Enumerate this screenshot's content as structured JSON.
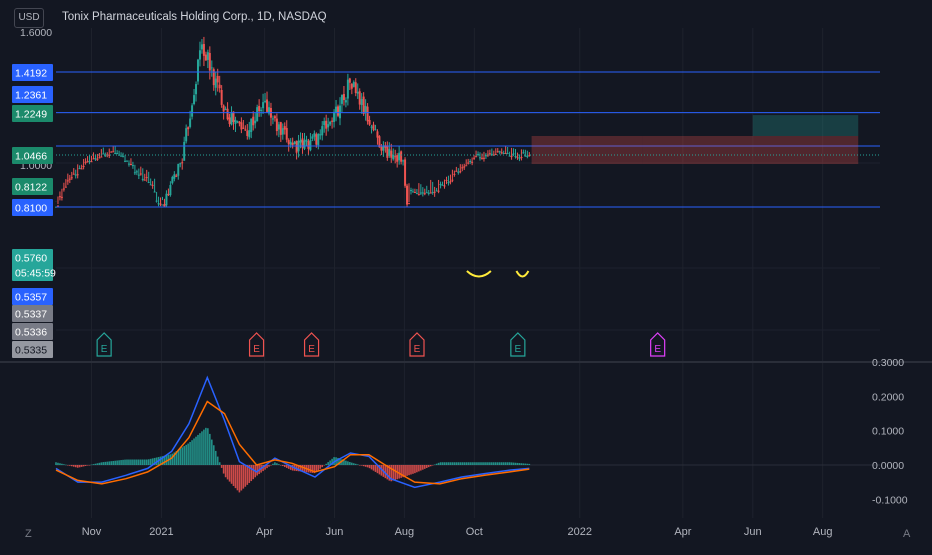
{
  "header": {
    "currency": "USD",
    "title": "Tonix Pharmaceuticals Holding Corp., 1D, NASDAQ"
  },
  "left_labels": [
    {
      "text": "1.4192",
      "bg": "#2962ff",
      "fg": "#ffffff"
    },
    {
      "text": "1.2361",
      "bg": "#2962ff",
      "fg": "#ffffff"
    },
    {
      "text": "1.2249",
      "bg": "#1b8a6b",
      "fg": "#ffffff"
    },
    {
      "text": "1.0466",
      "bg": "#1b8a6b",
      "fg": "#ffffff"
    },
    {
      "text": "0.8122",
      "bg": "#1b8a6b",
      "fg": "#ffffff"
    },
    {
      "text": "0.8100",
      "bg": "#2962ff",
      "fg": "#ffffff"
    },
    {
      "text": "0.5760",
      "bg": "#26a69a",
      "fg": "#ffffff"
    },
    {
      "text": "05:45:59",
      "bg": "#26a69a",
      "fg": "#ffffff"
    },
    {
      "text": "0.5357",
      "bg": "#2962ff",
      "fg": "#ffffff"
    },
    {
      "text": "0.5337",
      "bg": "#787b86",
      "fg": "#ffffff"
    },
    {
      "text": "0.5336",
      "bg": "#787b86",
      "fg": "#ffffff"
    },
    {
      "text": "0.5335",
      "bg": "#9598a1",
      "fg": "#131722"
    }
  ],
  "price_axis_ticks": [
    "1.6000",
    "1.0000"
  ],
  "macd_axis_ticks": [
    "0.3000",
    "0.2000",
    "0.1000",
    "0.0000",
    "-0.1000"
  ],
  "x_axis_labels": [
    "Nov",
    "2021",
    "Apr",
    "Jun",
    "Aug",
    "Oct",
    "2022",
    "Apr",
    "Jun",
    "Aug"
  ],
  "corner_left": "Z",
  "corner_right": "A",
  "earnings_markers": [
    {
      "label": "E",
      "color": "#26a69a"
    },
    {
      "label": "E",
      "color": "#ef5350"
    },
    {
      "label": "E",
      "color": "#ef5350"
    },
    {
      "label": "E",
      "color": "#ef5350"
    },
    {
      "label": "E",
      "color": "#26a69a"
    },
    {
      "label": "E",
      "color": "#e040fb"
    }
  ],
  "horizontal_levels": [
    1.4192,
    1.2361,
    0.81,
    0.5357
  ],
  "position_targets": [
    0.81,
    1.0466,
    1.2249
  ],
  "position_entry": 0.5357,
  "position_stop": 0.5335,
  "last_price": 0.576,
  "colors": {
    "background": "#131722",
    "up": "#26a69a",
    "down": "#ef5350",
    "level_line": "#2962ff",
    "macd_line": "#2962ff",
    "signal_line": "#ff6d00",
    "highlight": "#ffeb3b"
  },
  "chart_data": [
    {
      "type": "candlestick",
      "title": "Tonix Pharmaceuticals Holding Corp., 1D, NASDAQ",
      "ylim": [
        0.45,
        1.65
      ],
      "x_tick_labels": [
        "Nov",
        "2021",
        "Apr",
        "Jun",
        "Aug",
        "Oct",
        "2022",
        "Apr",
        "Jun",
        "Aug"
      ],
      "close_series": [
        {
          "date": "2020-10-01",
          "value": 0.8
        },
        {
          "date": "2020-10-15",
          "value": 0.66
        },
        {
          "date": "2020-11-01",
          "value": 0.58
        },
        {
          "date": "2020-11-20",
          "value": 0.55
        },
        {
          "date": "2020-12-05",
          "value": 0.62
        },
        {
          "date": "2020-12-20",
          "value": 0.68
        },
        {
          "date": "2021-01-05",
          "value": 0.84
        },
        {
          "date": "2021-01-20",
          "value": 1.05
        },
        {
          "date": "2021-02-05",
          "value": 1.55
        },
        {
          "date": "2021-02-15",
          "value": 1.4
        },
        {
          "date": "2021-03-01",
          "value": 1.22
        },
        {
          "date": "2021-03-15",
          "value": 1.15
        },
        {
          "date": "2021-04-01",
          "value": 1.28
        },
        {
          "date": "2021-04-15",
          "value": 1.14
        },
        {
          "date": "2021-05-01",
          "value": 1.08
        },
        {
          "date": "2021-05-15",
          "value": 1.12
        },
        {
          "date": "2021-06-01",
          "value": 1.22
        },
        {
          "date": "2021-06-15",
          "value": 1.38
        },
        {
          "date": "2021-07-01",
          "value": 1.2
        },
        {
          "date": "2021-07-15",
          "value": 1.06
        },
        {
          "date": "2021-07-30",
          "value": 1.04
        },
        {
          "date": "2021-08-05",
          "value": 0.72
        },
        {
          "date": "2021-08-20",
          "value": 0.74
        },
        {
          "date": "2021-09-05",
          "value": 0.7
        },
        {
          "date": "2021-09-20",
          "value": 0.62
        },
        {
          "date": "2021-10-05",
          "value": 0.58
        },
        {
          "date": "2021-10-20",
          "value": 0.56
        },
        {
          "date": "2021-11-05",
          "value": 0.57
        },
        {
          "date": "2021-11-18",
          "value": 0.576
        }
      ]
    },
    {
      "type": "line",
      "title": "",
      "ylim": [
        -0.12,
        0.31
      ],
      "series": [
        {
          "values": [
            {
              "date": "2020-10-01",
              "value": -0.01
            },
            {
              "date": "2020-10-20",
              "value": -0.05
            },
            {
              "date": "2020-11-10",
              "value": -0.05
            },
            {
              "date": "2020-12-01",
              "value": -0.03
            },
            {
              "date": "2020-12-20",
              "value": -0.01
            },
            {
              "date": "2021-01-10",
              "value": 0.04
            },
            {
              "date": "2021-01-25",
              "value": 0.12
            },
            {
              "date": "2021-02-10",
              "value": 0.255
            },
            {
              "date": "2021-02-25",
              "value": 0.13
            },
            {
              "date": "2021-03-10",
              "value": 0.01
            },
            {
              "date": "2021-03-25",
              "value": -0.02
            },
            {
              "date": "2021-04-10",
              "value": 0.02
            },
            {
              "date": "2021-04-25",
              "value": -0.005
            },
            {
              "date": "2021-05-15",
              "value": -0.035
            },
            {
              "date": "2021-06-01",
              "value": 0.01
            },
            {
              "date": "2021-06-15",
              "value": 0.035
            },
            {
              "date": "2021-07-01",
              "value": 0.025
            },
            {
              "date": "2021-07-20",
              "value": -0.04
            },
            {
              "date": "2021-08-10",
              "value": -0.065
            },
            {
              "date": "2021-09-01",
              "value": -0.05
            },
            {
              "date": "2021-09-20",
              "value": -0.035
            },
            {
              "date": "2021-10-10",
              "value": -0.025
            },
            {
              "date": "2021-11-01",
              "value": -0.015
            },
            {
              "date": "2021-11-18",
              "value": -0.01
            }
          ]
        },
        {
          "values": [
            {
              "date": "2020-10-01",
              "value": -0.015
            },
            {
              "date": "2020-10-20",
              "value": -0.045
            },
            {
              "date": "2020-11-10",
              "value": -0.055
            },
            {
              "date": "2020-12-01",
              "value": -0.04
            },
            {
              "date": "2020-12-20",
              "value": -0.02
            },
            {
              "date": "2021-01-10",
              "value": 0.02
            },
            {
              "date": "2021-01-25",
              "value": 0.08
            },
            {
              "date": "2021-02-10",
              "value": 0.185
            },
            {
              "date": "2021-02-25",
              "value": 0.15
            },
            {
              "date": "2021-03-10",
              "value": 0.06
            },
            {
              "date": "2021-03-25",
              "value": 0.0
            },
            {
              "date": "2021-04-10",
              "value": 0.015
            },
            {
              "date": "2021-04-25",
              "value": 0.005
            },
            {
              "date": "2021-05-15",
              "value": -0.02
            },
            {
              "date": "2021-06-01",
              "value": -0.005
            },
            {
              "date": "2021-06-15",
              "value": 0.03
            },
            {
              "date": "2021-07-01",
              "value": 0.03
            },
            {
              "date": "2021-07-20",
              "value": -0.01
            },
            {
              "date": "2021-08-10",
              "value": -0.05
            },
            {
              "date": "2021-09-01",
              "value": -0.055
            },
            {
              "date": "2021-09-20",
              "value": -0.04
            },
            {
              "date": "2021-10-10",
              "value": -0.03
            },
            {
              "date": "2021-11-01",
              "value": -0.02
            },
            {
              "date": "2021-11-18",
              "value": -0.012
            }
          ]
        }
      ]
    }
  ]
}
